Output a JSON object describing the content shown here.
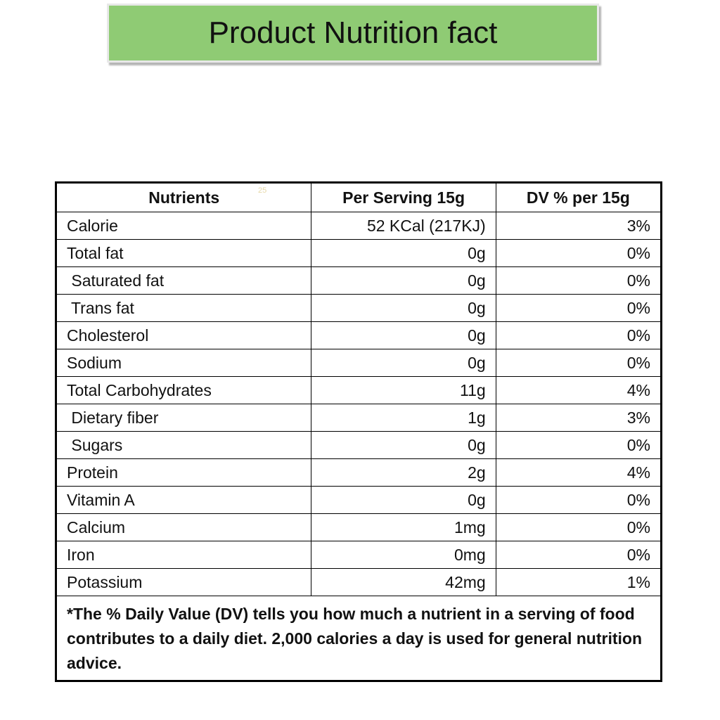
{
  "header": {
    "title": "Product Nutrition fact"
  },
  "table": {
    "columns": [
      "Nutrients",
      "Per Serving 15g",
      "DV % per 15g"
    ],
    "header_mark": "25",
    "rows": [
      [
        "Calorie",
        "52 KCal (217KJ)",
        "3%"
      ],
      [
        "Total fat",
        "0g",
        "0%"
      ],
      [
        " Saturated fat",
        "0g",
        "0%"
      ],
      [
        " Trans fat",
        "0g",
        "0%"
      ],
      [
        "Cholesterol",
        "0g",
        "0%"
      ],
      [
        "Sodium",
        "0g",
        "0%"
      ],
      [
        "Total Carbohydrates",
        "11g",
        "4%"
      ],
      [
        " Dietary fiber",
        "1g",
        "3%"
      ],
      [
        " Sugars",
        "0g",
        "0%"
      ],
      [
        "Protein",
        "2g",
        "4%"
      ],
      [
        "Vitamin A",
        "0g",
        "0%"
      ],
      [
        "Calcium",
        "1mg",
        "0%"
      ],
      [
        "Iron",
        "0mg",
        "0%"
      ],
      [
        "Potassium",
        "42mg",
        "1%"
      ]
    ],
    "footnote": "*The % Daily Value (DV) tells you how much a nutrient in a serving of food contributes to a daily diet. 2,000 calories a day is used for general nutrition advice."
  }
}
